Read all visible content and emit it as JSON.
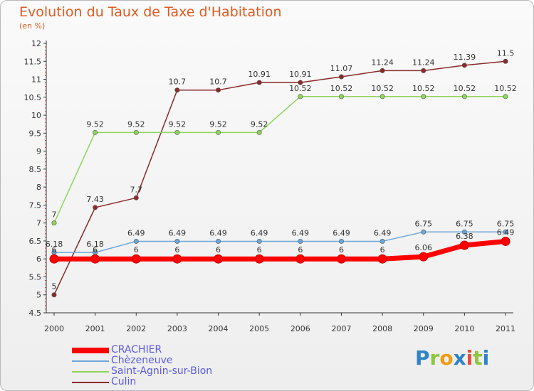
{
  "chart_data": {
    "type": "line",
    "title": "Evolution du Taux de Taxe d'Habitation",
    "subtitle": "(en %)",
    "xlabel": "",
    "ylabel": "",
    "x": [
      "2000",
      "2001",
      "2002",
      "2003",
      "2004",
      "2005",
      "2006",
      "2007",
      "2008",
      "2009",
      "2010",
      "2011"
    ],
    "ylim": [
      4.5,
      12
    ],
    "yticks": [
      "4.5",
      "5",
      "5.5",
      "6",
      "6.5",
      "7",
      "7.5",
      "8",
      "8.5",
      "9",
      "9.5",
      "10",
      "10.5",
      "11",
      "11.5",
      "12"
    ],
    "grid": false,
    "legend_position": "bottom-left",
    "series": [
      {
        "name": "CRACHIER",
        "color": "#ff0000",
        "values": [
          6,
          6,
          6,
          6,
          6,
          6,
          6,
          6,
          6,
          6.06,
          6.38,
          6.49
        ],
        "labels": [
          "6",
          "6",
          "6",
          "6",
          "6",
          "6",
          "6",
          "6",
          "6",
          "6.06",
          "6.38",
          "6.49"
        ]
      },
      {
        "name": "Chèzeneuve",
        "color": "#6ea6d8",
        "values": [
          6.18,
          6.18,
          6.49,
          6.49,
          6.49,
          6.49,
          6.49,
          6.49,
          6.49,
          6.75,
          6.75,
          6.75
        ],
        "labels": [
          "6.18",
          "6.18",
          "6.49",
          "6.49",
          "6.49",
          "6.49",
          "6.49",
          "6.49",
          "6.49",
          "6.75",
          "6.75",
          "6.75"
        ]
      },
      {
        "name": "Saint-Agnin-sur-Bion",
        "color": "#8fd45a",
        "values": [
          7,
          9.52,
          9.52,
          9.52,
          9.52,
          9.52,
          10.52,
          10.52,
          10.52,
          10.52,
          10.52,
          10.52
        ],
        "labels": [
          "7",
          "9.52",
          "9.52",
          "9.52",
          "9.52",
          "9.52",
          "10.52",
          "10.52",
          "10.52",
          "10.52",
          "10.52",
          "10.52"
        ]
      },
      {
        "name": "Culin",
        "color": "#8b2a2a",
        "values": [
          5,
          7.43,
          7.7,
          10.7,
          10.7,
          10.91,
          10.91,
          11.07,
          11.24,
          11.24,
          11.39,
          11.5
        ],
        "labels": [
          "5",
          "7.43",
          "7.7",
          "10.7",
          "10.7",
          "10.91",
          "10.91",
          "11.07",
          "11.24",
          "11.24",
          "11.39",
          "11.5"
        ]
      }
    ]
  },
  "logo": {
    "letters": [
      "P",
      "r",
      "o",
      "x",
      "i",
      "t",
      "i"
    ]
  }
}
